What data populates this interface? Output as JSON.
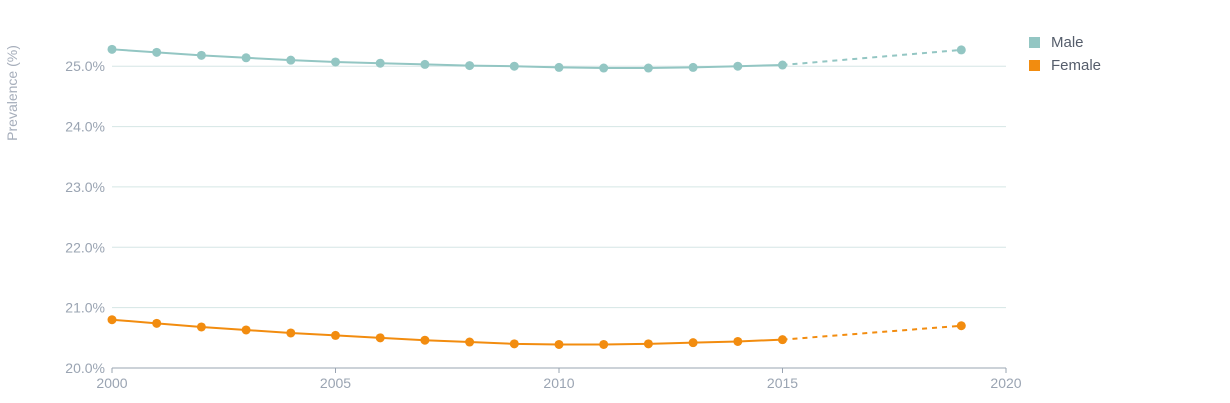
{
  "chart_data": {
    "type": "line",
    "title": "",
    "xlabel": "",
    "ylabel": "Prevalence (%)",
    "xlim": [
      2000,
      2020
    ],
    "ylim": [
      20.0,
      25.6
    ],
    "x_ticks": [
      2000,
      2005,
      2010,
      2015,
      2020
    ],
    "y_ticks": [
      {
        "value": 20.0,
        "label": "20.0%"
      },
      {
        "value": 21.0,
        "label": "21.0%"
      },
      {
        "value": 22.0,
        "label": "22.0%"
      },
      {
        "value": 23.0,
        "label": "23.0%"
      },
      {
        "value": 24.0,
        "label": "24.0%"
      },
      {
        "value": 25.0,
        "label": "25.0%"
      }
    ],
    "grid": "horizontal",
    "legend_position": "top-right",
    "series": [
      {
        "name": "Male",
        "color": "#93c6c3",
        "x": [
          2000,
          2001,
          2002,
          2003,
          2004,
          2005,
          2006,
          2007,
          2008,
          2009,
          2010,
          2011,
          2012,
          2013,
          2014,
          2015,
          2019
        ],
        "values": [
          25.28,
          25.23,
          25.18,
          25.14,
          25.1,
          25.07,
          25.05,
          25.03,
          25.01,
          25.0,
          24.98,
          24.97,
          24.97,
          24.98,
          25.0,
          25.02,
          25.27
        ],
        "projected_from_index": 15
      },
      {
        "name": "Female",
        "color": "#f28c0f",
        "x": [
          2000,
          2001,
          2002,
          2003,
          2004,
          2005,
          2006,
          2007,
          2008,
          2009,
          2010,
          2011,
          2012,
          2013,
          2014,
          2015,
          2019
        ],
        "values": [
          20.8,
          20.74,
          20.68,
          20.63,
          20.58,
          20.54,
          20.5,
          20.46,
          20.43,
          20.4,
          20.39,
          20.39,
          20.4,
          20.42,
          20.44,
          20.47,
          20.7
        ],
        "projected_from_index": 15
      }
    ]
  }
}
